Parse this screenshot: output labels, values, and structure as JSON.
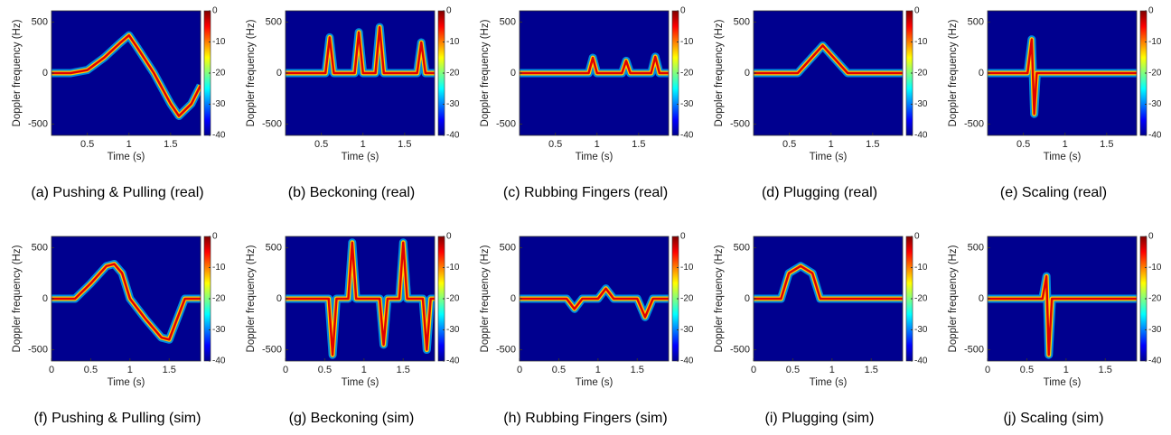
{
  "chart_data": [
    {
      "type": "spectrogram",
      "title": "(a) Pushing & Pulling (real)",
      "xlabel": "Time (s)",
      "ylabel": "Doppler frequency (Hz)",
      "xlim": [
        0.07,
        1.86
      ],
      "ylim": [
        -610,
        610
      ],
      "xticks": [
        0.5,
        1,
        1.5
      ],
      "yticks": [
        -500,
        0,
        500
      ],
      "clim": [
        -40,
        0
      ],
      "cticks": [
        0,
        -10,
        -20,
        -30,
        -40
      ],
      "x": [
        0.07,
        0.3,
        0.5,
        0.7,
        0.9,
        1.0,
        1.1,
        1.3,
        1.5,
        1.6,
        1.75,
        1.86
      ],
      "values": [
        0,
        0,
        30,
        150,
        300,
        370,
        250,
        0,
        -300,
        -420,
        -300,
        -120
      ]
    },
    {
      "type": "spectrogram",
      "title": "(b) Beckoning (real)",
      "xlabel": "Time (s)",
      "ylabel": "Doppler frequency (Hz)",
      "xlim": [
        0.07,
        1.86
      ],
      "ylim": [
        -610,
        610
      ],
      "xticks": [
        0.5,
        1,
        1.5
      ],
      "yticks": [
        -500,
        0,
        500
      ],
      "clim": [
        -40,
        0
      ],
      "cticks": [
        0,
        -10,
        -20,
        -30,
        -40
      ],
      "x": [
        0.07,
        0.55,
        0.6,
        0.65,
        0.9,
        0.95,
        1.0,
        1.15,
        1.2,
        1.25,
        1.65,
        1.7,
        1.75,
        1.86
      ],
      "values": [
        0,
        0,
        350,
        0,
        0,
        400,
        0,
        0,
        450,
        0,
        0,
        300,
        0,
        0
      ]
    },
    {
      "type": "spectrogram",
      "title": "(c) Rubbing Fingers (real)",
      "xlabel": "Time (s)",
      "ylabel": "Doppler frequency (Hz)",
      "xlim": [
        0.07,
        1.86
      ],
      "ylim": [
        -610,
        610
      ],
      "xticks": [
        0.5,
        1,
        1.5
      ],
      "yticks": [
        -500,
        0,
        500
      ],
      "clim": [
        -40,
        0
      ],
      "cticks": [
        0,
        -10,
        -20,
        -30,
        -40
      ],
      "x": [
        0.07,
        0.9,
        0.95,
        1.0,
        1.3,
        1.35,
        1.4,
        1.65,
        1.7,
        1.75,
        1.86
      ],
      "values": [
        0,
        0,
        150,
        0,
        0,
        120,
        0,
        0,
        160,
        0,
        0
      ]
    },
    {
      "type": "spectrogram",
      "title": "(d) Plugging (real)",
      "xlabel": "Time (s)",
      "ylabel": "Doppler frequency (Hz)",
      "xlim": [
        0.07,
        1.86
      ],
      "ylim": [
        -610,
        610
      ],
      "xticks": [
        0.5,
        1,
        1.5
      ],
      "yticks": [
        -500,
        0,
        500
      ],
      "clim": [
        -40,
        0
      ],
      "cticks": [
        0,
        -10,
        -20,
        -30,
        -40
      ],
      "x": [
        0.07,
        0.6,
        0.9,
        1.2,
        1.86
      ],
      "values": [
        0,
        0,
        270,
        0,
        0
      ]
    },
    {
      "type": "spectrogram",
      "title": "(e) Scaling (real)",
      "xlabel": "Time (s)",
      "ylabel": "Doppler frequency (Hz)",
      "xlim": [
        0.07,
        1.86
      ],
      "ylim": [
        -610,
        610
      ],
      "xticks": [
        0.5,
        1,
        1.5
      ],
      "yticks": [
        -500,
        0,
        500
      ],
      "clim": [
        -40,
        0
      ],
      "cticks": [
        0,
        -10,
        -20,
        -30,
        -40
      ],
      "x": [
        0.07,
        0.55,
        0.6,
        0.63,
        0.66,
        0.7,
        1.86
      ],
      "values": [
        0,
        0,
        330,
        -400,
        0,
        0,
        0
      ]
    },
    {
      "type": "spectrogram",
      "title": "(f) Pushing & Pulling (sim)",
      "xlabel": "Time (s)",
      "ylabel": "Doppler frequency (Hz)",
      "xlim": [
        0,
        1.9
      ],
      "ylim": [
        -610,
        610
      ],
      "xticks": [
        0,
        0.5,
        1,
        1.5
      ],
      "yticks": [
        -500,
        0,
        500
      ],
      "clim": [
        -40,
        0
      ],
      "cticks": [
        0,
        -10,
        -20,
        -30,
        -40
      ],
      "x": [
        0,
        0.3,
        0.5,
        0.7,
        0.8,
        0.9,
        1.0,
        1.2,
        1.4,
        1.5,
        1.7,
        1.9
      ],
      "values": [
        0,
        0,
        150,
        320,
        340,
        250,
        0,
        -200,
        -380,
        -400,
        0,
        0
      ]
    },
    {
      "type": "spectrogram",
      "title": "(g) Beckoning (sim)",
      "xlabel": "Time (s)",
      "ylabel": "Doppler frequency (Hz)",
      "xlim": [
        0,
        1.9
      ],
      "ylim": [
        -610,
        610
      ],
      "xticks": [
        0,
        0.5,
        1,
        1.5
      ],
      "yticks": [
        -500,
        0,
        500
      ],
      "clim": [
        -40,
        0
      ],
      "cticks": [
        0,
        -10,
        -20,
        -30,
        -40
      ],
      "x": [
        0,
        0.55,
        0.6,
        0.65,
        0.8,
        0.85,
        0.9,
        1.2,
        1.25,
        1.3,
        1.45,
        1.5,
        1.55,
        1.75,
        1.8,
        1.85,
        1.9
      ],
      "values": [
        0,
        0,
        -550,
        0,
        0,
        550,
        0,
        0,
        -450,
        0,
        0,
        550,
        0,
        0,
        -500,
        0,
        0
      ]
    },
    {
      "type": "spectrogram",
      "title": "(h) Rubbing Fingers (sim)",
      "xlabel": "Time (s)",
      "ylabel": "Doppler frequency (Hz)",
      "xlim": [
        0,
        1.9
      ],
      "ylim": [
        -610,
        610
      ],
      "xticks": [
        0,
        0.5,
        1,
        1.5
      ],
      "yticks": [
        -500,
        0,
        500
      ],
      "clim": [
        -40,
        0
      ],
      "cticks": [
        0,
        -10,
        -20,
        -30,
        -40
      ],
      "x": [
        0,
        0.6,
        0.7,
        0.8,
        1.0,
        1.1,
        1.2,
        1.5,
        1.6,
        1.7,
        1.9
      ],
      "values": [
        0,
        0,
        -100,
        0,
        0,
        100,
        0,
        0,
        -180,
        0,
        0
      ]
    },
    {
      "type": "spectrogram",
      "title": "(i) Plugging (sim)",
      "xlabel": "Time (s)",
      "ylabel": "Doppler frequency (Hz)",
      "xlim": [
        0,
        1.9
      ],
      "ylim": [
        -610,
        610
      ],
      "xticks": [
        0,
        0.5,
        1,
        1.5
      ],
      "yticks": [
        -500,
        0,
        500
      ],
      "clim": [
        -40,
        0
      ],
      "cticks": [
        0,
        -10,
        -20,
        -30,
        -40
      ],
      "x": [
        0,
        0.35,
        0.45,
        0.6,
        0.75,
        0.85,
        1.9
      ],
      "values": [
        0,
        0,
        250,
        320,
        250,
        0,
        0
      ]
    },
    {
      "type": "spectrogram",
      "title": "(j) Scaling (sim)",
      "xlabel": "Time (s)",
      "ylabel": "Doppler frequency (Hz)",
      "xlim": [
        0,
        1.9
      ],
      "ylim": [
        -610,
        610
      ],
      "xticks": [
        0,
        0.5,
        1,
        1.5
      ],
      "yticks": [
        -500,
        0,
        500
      ],
      "clim": [
        -40,
        0
      ],
      "cticks": [
        0,
        -10,
        -20,
        -30,
        -40
      ],
      "x": [
        0,
        0.7,
        0.75,
        0.78,
        0.82,
        0.9,
        1.9
      ],
      "values": [
        0,
        0,
        220,
        -550,
        0,
        0,
        0
      ]
    }
  ]
}
